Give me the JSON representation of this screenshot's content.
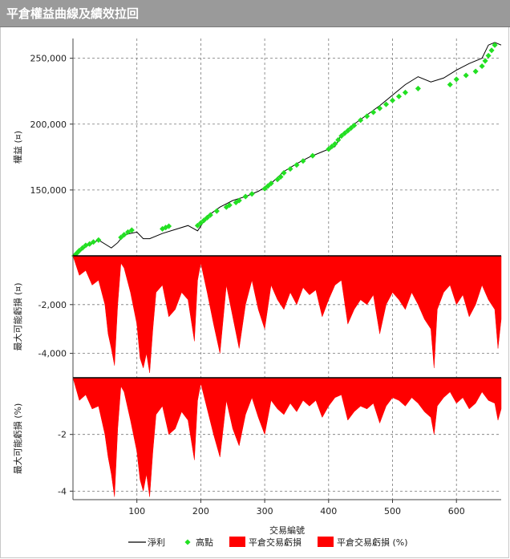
{
  "title": "平倉權益曲線及績效拉回",
  "chart_data": [
    {
      "type": "line",
      "panel": "equity",
      "ylabel": "權益 (¤)",
      "ylim": [
        100000,
        265000
      ],
      "yticks": [
        150000,
        200000,
        250000
      ],
      "ytick_labels": [
        "150,000",
        "200,000",
        "250,000"
      ],
      "xlim": [
        0,
        670
      ],
      "grid": true,
      "series": [
        {
          "name": "淨利",
          "x": [
            0,
            20,
            40,
            60,
            70,
            80,
            100,
            110,
            120,
            140,
            160,
            180,
            195,
            210,
            230,
            250,
            270,
            290,
            310,
            330,
            350,
            370,
            390,
            400,
            410,
            420,
            440,
            460,
            480,
            500,
            520,
            540,
            560,
            580,
            600,
            620,
            640,
            650,
            660,
            670
          ],
          "values": [
            100000,
            107000,
            112000,
            106000,
            110000,
            116000,
            118000,
            113000,
            113000,
            117000,
            120000,
            123000,
            119000,
            130000,
            137000,
            142000,
            145000,
            149000,
            155000,
            164000,
            170000,
            175000,
            179000,
            181000,
            183000,
            192000,
            200000,
            207000,
            214000,
            222000,
            230000,
            236000,
            232000,
            235000,
            241000,
            246000,
            250000,
            260000,
            262000,
            260000
          ]
        }
      ],
      "highpoints": {
        "name": "高點",
        "x": [
          2,
          6,
          10,
          15,
          20,
          26,
          32,
          40,
          75,
          80,
          86,
          92,
          140,
          145,
          150,
          195,
          200,
          205,
          210,
          215,
          225,
          240,
          245,
          255,
          260,
          270,
          280,
          300,
          305,
          310,
          320,
          325,
          330,
          340,
          350,
          360,
          375,
          400,
          405,
          410,
          415,
          420,
          425,
          430,
          435,
          440,
          450,
          460,
          470,
          480,
          490,
          500,
          510,
          520,
          540,
          590,
          600,
          615,
          630,
          640,
          645,
          650,
          655,
          660
        ],
        "values": [
          100000,
          102000,
          104000,
          106000,
          108000,
          109000,
          110500,
          112000,
          114000,
          116000,
          118000,
          119500,
          120500,
          121500,
          122500,
          123000,
          125000,
          127000,
          129000,
          131000,
          134000,
          137000,
          138500,
          140500,
          142000,
          145000,
          147000,
          151000,
          153000,
          155000,
          158000,
          160000,
          163000,
          166000,
          169000,
          172000,
          176000,
          181000,
          183000,
          185000,
          188000,
          191000,
          193000,
          195000,
          197000,
          199000,
          203000,
          206000,
          209000,
          212000,
          215000,
          218000,
          221000,
          224000,
          227000,
          230000,
          234000,
          237000,
          240000,
          244000,
          248000,
          252000,
          256000,
          260000
        ]
      },
      "colors": {
        "line": "#000000",
        "marker": "#22e022"
      }
    },
    {
      "type": "area",
      "panel": "drawdown-amount",
      "ylabel": "最大可能虧損 (¤)",
      "ylim": [
        -5000,
        0
      ],
      "yticks": [
        -2000,
        -4000
      ],
      "ytick_labels": [
        "-2,000",
        "-4,000"
      ],
      "series": [
        {
          "name": "平倉交易虧損",
          "x": [
            0,
            10,
            20,
            30,
            40,
            50,
            55,
            60,
            65,
            70,
            75,
            80,
            90,
            100,
            105,
            110,
            115,
            120,
            125,
            130,
            140,
            150,
            160,
            170,
            180,
            190,
            195,
            200,
            210,
            220,
            230,
            240,
            250,
            260,
            270,
            280,
            290,
            300,
            310,
            320,
            330,
            340,
            350,
            360,
            370,
            380,
            390,
            400,
            410,
            420,
            430,
            440,
            450,
            460,
            470,
            480,
            490,
            500,
            510,
            520,
            530,
            540,
            550,
            560,
            565,
            570,
            580,
            590,
            600,
            610,
            620,
            630,
            640,
            650,
            660,
            665,
            670
          ],
          "values": [
            0,
            -800,
            -600,
            -1200,
            -1000,
            -2000,
            -3200,
            -3800,
            -4500,
            -2000,
            -300,
            -500,
            -1500,
            -2800,
            -4200,
            -4600,
            -4000,
            -4800,
            -3000,
            -1500,
            -1200,
            -2500,
            -2200,
            -1500,
            -1800,
            -3500,
            -1000,
            -300,
            -1500,
            -2800,
            -4000,
            -1200,
            -2500,
            -3800,
            -2000,
            -1000,
            -2200,
            -3000,
            -1200,
            -1800,
            -2200,
            -1500,
            -2000,
            -1300,
            -1600,
            -1400,
            -2500,
            -1800,
            -1200,
            -1000,
            -2800,
            -2200,
            -1800,
            -2000,
            -1600,
            -3200,
            -2000,
            -1500,
            -1800,
            -2200,
            -1500,
            -2000,
            -2600,
            -3000,
            -4600,
            -2200,
            -1500,
            -1200,
            -2000,
            -1600,
            -2500,
            -2000,
            -1200,
            -1800,
            -2200,
            -3800,
            -2600
          ]
        }
      ],
      "colors": {
        "fill": "#ff0000",
        "stroke": "#000000"
      }
    },
    {
      "type": "area",
      "panel": "drawdown-percent",
      "ylabel": "最大可能虧損 (%)",
      "ylim": [
        -4.3,
        0
      ],
      "yticks": [
        -2,
        -4
      ],
      "ytick_labels": [
        "-2",
        "-4"
      ],
      "series": [
        {
          "name": "平倉交易虧損 (%)",
          "x": [
            0,
            10,
            20,
            30,
            40,
            50,
            55,
            60,
            65,
            70,
            75,
            80,
            90,
            100,
            105,
            110,
            115,
            120,
            125,
            130,
            140,
            150,
            160,
            170,
            180,
            190,
            195,
            200,
            210,
            220,
            230,
            240,
            250,
            260,
            270,
            280,
            290,
            300,
            310,
            320,
            330,
            340,
            350,
            360,
            370,
            380,
            390,
            400,
            410,
            420,
            430,
            440,
            450,
            460,
            470,
            480,
            490,
            500,
            510,
            520,
            530,
            540,
            550,
            560,
            565,
            570,
            580,
            590,
            600,
            610,
            620,
            630,
            640,
            650,
            660,
            665,
            670
          ],
          "values": [
            0,
            -0.8,
            -0.6,
            -1.1,
            -1.0,
            -2.0,
            -2.8,
            -3.4,
            -4.2,
            -1.8,
            -0.3,
            -0.5,
            -1.5,
            -2.6,
            -3.6,
            -4.0,
            -3.4,
            -4.2,
            -2.6,
            -1.3,
            -1.0,
            -2.0,
            -1.8,
            -1.2,
            -1.5,
            -2.9,
            -0.8,
            -0.2,
            -1.1,
            -2.0,
            -2.8,
            -0.8,
            -1.8,
            -2.4,
            -1.3,
            -0.7,
            -1.4,
            -2.0,
            -0.8,
            -1.1,
            -1.3,
            -0.9,
            -1.2,
            -0.8,
            -1.0,
            -0.8,
            -1.4,
            -1.0,
            -0.7,
            -0.6,
            -1.5,
            -1.2,
            -1.0,
            -1.1,
            -0.9,
            -1.6,
            -1.0,
            -0.7,
            -0.8,
            -1.0,
            -0.7,
            -0.9,
            -1.2,
            -1.4,
            -2.0,
            -1.0,
            -0.7,
            -0.5,
            -0.9,
            -0.7,
            -1.1,
            -0.9,
            -0.5,
            -0.8,
            -0.9,
            -1.5,
            -1.1
          ]
        }
      ],
      "colors": {
        "fill": "#ff0000",
        "stroke": "#000000"
      }
    }
  ],
  "x_axis": {
    "label": "交易編號",
    "ticks": [
      100,
      200,
      300,
      400,
      500,
      600
    ],
    "tick_labels": [
      "100",
      "200",
      "300",
      "400",
      "500",
      "600"
    ]
  },
  "legend": {
    "placement": "bottom",
    "items": [
      {
        "label": "淨利",
        "icon": "line-swatch",
        "color": "#000000"
      },
      {
        "label": "高點",
        "icon": "diamond-marker",
        "color": "#22e022"
      },
      {
        "label": "平倉交易虧損",
        "icon": "filled-box",
        "color": "#ff0000"
      },
      {
        "label": "平倉交易虧損 (%)",
        "icon": "filled-box",
        "color": "#ff0000"
      }
    ]
  }
}
